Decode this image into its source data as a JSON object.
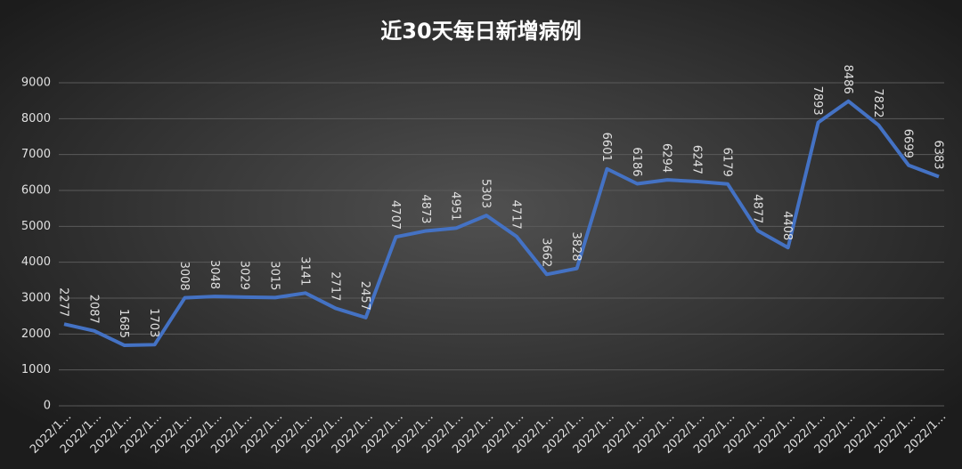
{
  "chart_data": {
    "type": "line",
    "title": "近30天每日新增病例",
    "categories": [
      "2022/1…",
      "2022/1…",
      "2022/1…",
      "2022/1…",
      "2022/1…",
      "2022/1…",
      "2022/1…",
      "2022/1…",
      "2022/1…",
      "2022/1…",
      "2022/1…",
      "2022/1…",
      "2022/1…",
      "2022/1…",
      "2022/1…",
      "2022/1…",
      "2022/1…",
      "2022/1…",
      "2022/1…",
      "2022/1…",
      "2022/1…",
      "2022/1…",
      "2022/1…",
      "2022/1…",
      "2022/1…",
      "2022/1…",
      "2022/1…",
      "2022/1…",
      "2022/1…",
      "2022/1…"
    ],
    "values": [
      2277,
      2087,
      1685,
      1703,
      3008,
      3048,
      3029,
      3015,
      3141,
      2717,
      2457,
      4707,
      4873,
      4951,
      5303,
      4717,
      3662,
      3828,
      6601,
      6186,
      6294,
      6247,
      6179,
      4877,
      4408,
      7893,
      8486,
      7822,
      6699,
      6383
    ],
    "color": "#4472c4",
    "ylim": [
      0,
      9000
    ],
    "yticks": [
      0,
      1000,
      2000,
      3000,
      4000,
      5000,
      6000,
      7000,
      8000,
      9000
    ],
    "grid": true
  }
}
